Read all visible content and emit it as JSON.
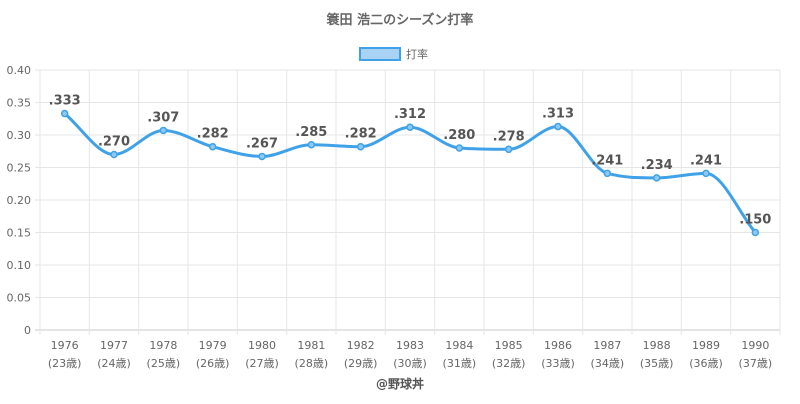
{
  "chart_data": {
    "type": "line",
    "title": "簑田 浩二のシーズン打率",
    "legend": {
      "label": "打率",
      "position": "top-center"
    },
    "x": [
      "1976",
      "1977",
      "1978",
      "1979",
      "1980",
      "1981",
      "1982",
      "1983",
      "1984",
      "1985",
      "1986",
      "1987",
      "1988",
      "1989",
      "1990"
    ],
    "x_sublabels": [
      "(23歳)",
      "(24歳)",
      "(25歳)",
      "(26歳)",
      "(27歳)",
      "(28歳)",
      "(29歳)",
      "(30歳)",
      "(31歳)",
      "(32歳)",
      "(33歳)",
      "(34歳)",
      "(35歳)",
      "(36歳)",
      "(37歳)"
    ],
    "series": [
      {
        "name": "打率",
        "values": [
          0.333,
          0.27,
          0.307,
          0.282,
          0.267,
          0.285,
          0.282,
          0.312,
          0.28,
          0.278,
          0.313,
          0.241,
          0.234,
          0.241,
          0.15
        ],
        "data_labels": [
          ".333",
          ".270",
          ".307",
          ".282",
          ".267",
          ".285",
          ".282",
          ".312",
          ".280",
          ".278",
          ".313",
          ".241",
          ".234",
          ".241",
          ".150"
        ]
      }
    ],
    "ylim": [
      0,
      0.4
    ],
    "yticks": [
      0,
      0.05,
      0.1,
      0.15,
      0.2,
      0.25,
      0.3,
      0.35,
      0.4
    ],
    "ytick_labels": [
      "0",
      "0.05",
      "0.10",
      "0.15",
      "0.20",
      "0.25",
      "0.30",
      "0.35",
      "0.40"
    ],
    "grid": true,
    "line_color": "#3fa2e8",
    "point_fill": "#8fc8f2",
    "watermark": "@野球丼"
  }
}
